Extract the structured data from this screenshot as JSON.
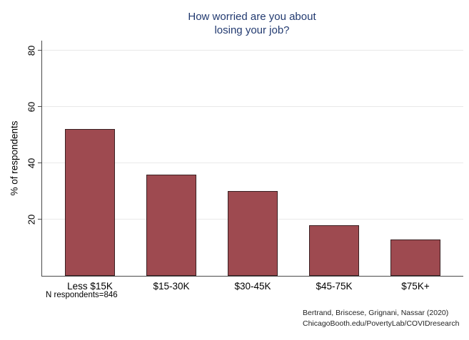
{
  "chart_data": {
    "type": "bar",
    "title": "How worried are you about\nlosing your job?",
    "ylabel": "% of respondents",
    "xlabel": "",
    "categories": [
      "Less $15K",
      "$15-30K",
      "$30-45K",
      "$45-75K",
      "$75K+"
    ],
    "values": [
      52,
      36,
      30,
      18,
      13
    ],
    "yticks": [
      20,
      40,
      60,
      80
    ],
    "ylim": [
      0,
      83.5
    ],
    "grid": true,
    "legend": "none",
    "note": "N respondents=846",
    "source_line1": "Bertrand, Briscese, Grignani, Nassar (2020)",
    "source_line2": "ChicagoBooth.edu/PovertyLab/COVIDresearch",
    "colors": {
      "bar_fill": "#9e4a50",
      "bar_border": "#3a2022",
      "title_text": "#223a70",
      "gridline": "#e9e9e9",
      "axis": "#4a4a4a",
      "label_text": "#000000",
      "background": "#ffffff"
    }
  }
}
